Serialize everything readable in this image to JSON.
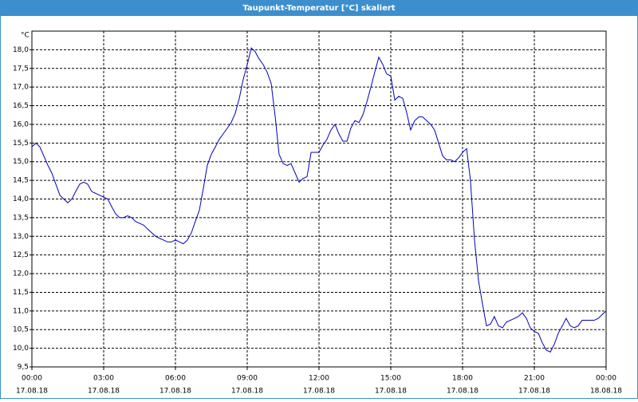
{
  "chart_data": {
    "type": "line",
    "title": "Taupunkt-Temperatur [°C] skaliert",
    "y_label": "°C",
    "x": [
      0,
      0.17,
      0.33,
      0.5,
      0.67,
      0.83,
      1,
      1.17,
      1.33,
      1.5,
      1.67,
      1.83,
      2,
      2.17,
      2.33,
      2.5,
      2.67,
      2.83,
      3,
      3.17,
      3.33,
      3.5,
      3.67,
      3.83,
      4,
      4.17,
      4.33,
      4.5,
      4.67,
      4.83,
      5,
      5.17,
      5.33,
      5.5,
      5.67,
      5.83,
      6,
      6.17,
      6.33,
      6.5,
      6.67,
      6.83,
      7,
      7.17,
      7.33,
      7.5,
      7.67,
      7.83,
      8,
      8.17,
      8.33,
      8.5,
      8.67,
      8.83,
      9,
      9.17,
      9.33,
      9.5,
      9.67,
      9.83,
      10,
      10.17,
      10.33,
      10.5,
      10.67,
      10.83,
      11,
      11.17,
      11.33,
      11.5,
      11.67,
      11.83,
      12,
      12.17,
      12.33,
      12.5,
      12.67,
      12.83,
      13,
      13.17,
      13.33,
      13.5,
      13.67,
      13.83,
      14,
      14.17,
      14.33,
      14.5,
      14.67,
      14.83,
      15,
      15.17,
      15.33,
      15.5,
      15.67,
      15.83,
      16,
      16.17,
      16.33,
      16.5,
      16.67,
      16.83,
      17,
      17.17,
      17.33,
      17.5,
      17.67,
      17.83,
      18,
      18.17,
      18.33,
      18.5,
      18.67,
      18.83,
      19,
      19.17,
      19.33,
      19.5,
      19.67,
      19.83,
      20,
      20.17,
      20.33,
      20.5,
      20.67,
      20.83,
      21,
      21.17,
      21.33,
      21.5,
      21.67,
      21.83,
      22,
      22.17,
      22.33,
      22.5,
      22.67,
      22.83,
      23,
      23.17,
      23.33,
      23.5,
      23.67,
      23.83,
      24
    ],
    "series": [
      {
        "name": "Taupunkt",
        "color": "#0000c0",
        "values": [
          15.4,
          15.5,
          15.4,
          15.15,
          14.9,
          14.7,
          14.4,
          14.1,
          14.0,
          13.9,
          14.0,
          14.2,
          14.4,
          14.45,
          14.4,
          14.2,
          14.15,
          14.1,
          14.05,
          14.0,
          13.8,
          13.6,
          13.5,
          13.5,
          13.55,
          13.5,
          13.4,
          13.35,
          13.3,
          13.2,
          13.1,
          13.0,
          12.95,
          12.9,
          12.85,
          12.85,
          12.9,
          12.85,
          12.8,
          12.9,
          13.1,
          13.4,
          13.7,
          14.3,
          14.9,
          15.2,
          15.4,
          15.6,
          15.75,
          15.9,
          16.05,
          16.3,
          16.7,
          17.2,
          17.6,
          18.05,
          17.95,
          17.75,
          17.6,
          17.4,
          17.1,
          16.2,
          15.2,
          14.95,
          14.9,
          14.95,
          14.7,
          14.45,
          14.55,
          14.6,
          15.25,
          15.25,
          15.25,
          15.45,
          15.6,
          15.85,
          16.0,
          15.75,
          15.55,
          15.55,
          15.9,
          16.1,
          16.05,
          16.25,
          16.6,
          17.0,
          17.4,
          17.8,
          17.6,
          17.35,
          17.3,
          16.65,
          16.75,
          16.7,
          16.3,
          15.85,
          16.1,
          16.2,
          16.2,
          16.1,
          16.0,
          15.85,
          15.5,
          15.15,
          15.05,
          15.05,
          15.0,
          15.1,
          15.25,
          15.35,
          14.5,
          12.9,
          11.8,
          11.2,
          10.6,
          10.65,
          10.85,
          10.6,
          10.55,
          10.7,
          10.75,
          10.8,
          10.85,
          10.95,
          10.8,
          10.55,
          10.45,
          10.4,
          10.15,
          9.95,
          9.9,
          10.1,
          10.4,
          10.6,
          10.8,
          10.6,
          10.55,
          10.6,
          10.75,
          10.75,
          10.75,
          10.75,
          10.8,
          10.9,
          11.0
        ]
      }
    ],
    "xlim": [
      0,
      24
    ],
    "xticks": [
      {
        "value": 0,
        "label": "00:00"
      },
      {
        "value": 3,
        "label": "03:00"
      },
      {
        "value": 6,
        "label": "06:00"
      },
      {
        "value": 9,
        "label": "09:00"
      },
      {
        "value": 12,
        "label": "12:00"
      },
      {
        "value": 15,
        "label": "15:00"
      },
      {
        "value": 18,
        "label": "18:00"
      },
      {
        "value": 21,
        "label": "21:00"
      },
      {
        "value": 24,
        "label": "00:00"
      }
    ],
    "xtick_dates": [
      "17.08.18",
      "17.08.18",
      "17.08.18",
      "17.08.18",
      "17.08.18",
      "17.08.18",
      "17.08.18",
      "17.08.18",
      "18.08.18"
    ],
    "ylim": [
      9.5,
      18.5
    ],
    "yticks": [
      {
        "value": 9.5,
        "label": "9,5"
      },
      {
        "value": 10,
        "label": "10,0"
      },
      {
        "value": 10.5,
        "label": "10,5"
      },
      {
        "value": 11,
        "label": "11,0"
      },
      {
        "value": 11.5,
        "label": "11,5"
      },
      {
        "value": 12,
        "label": "12,0"
      },
      {
        "value": 12.5,
        "label": "12,5"
      },
      {
        "value": 13,
        "label": "13,0"
      },
      {
        "value": 13.5,
        "label": "13,5"
      },
      {
        "value": 14,
        "label": "14,0"
      },
      {
        "value": 14.5,
        "label": "14,5"
      },
      {
        "value": 15,
        "label": "15,0"
      },
      {
        "value": 15.5,
        "label": "15,5"
      },
      {
        "value": 16,
        "label": "16,0"
      },
      {
        "value": 16.5,
        "label": "16,5"
      },
      {
        "value": 17,
        "label": "17,0"
      },
      {
        "value": 17.5,
        "label": "17,5"
      },
      {
        "value": 18,
        "label": "18,0"
      }
    ],
    "grid": true
  }
}
